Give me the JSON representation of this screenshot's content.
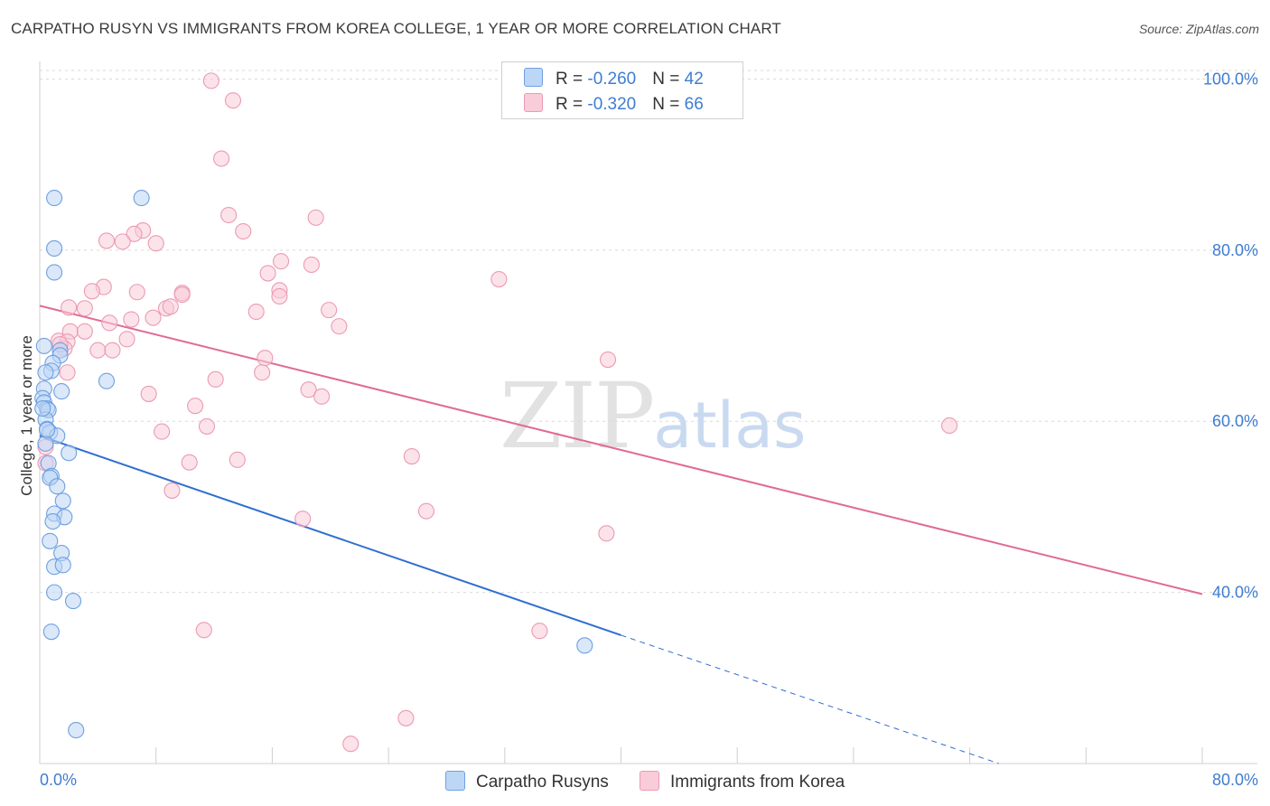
{
  "title": "CARPATHO RUSYN VS IMMIGRANTS FROM KOREA COLLEGE, 1 YEAR OR MORE CORRELATION CHART",
  "source": "Source: ZipAtlas.com",
  "watermark": {
    "zip": "ZIP",
    "atlas": "atlas"
  },
  "legend": {
    "rows": [
      {
        "r_label": "R = ",
        "r_value": "-0.260",
        "n_label": "N = ",
        "n_value": "42",
        "color": "#a9c8f2"
      },
      {
        "r_label": "R = ",
        "r_value": "-0.320",
        "n_label": "N = ",
        "n_value": "66",
        "color": "#f7b8cb"
      }
    ]
  },
  "bottom_legend": [
    {
      "label": "Carpatho Rusyns",
      "color": "#a9c8f2"
    },
    {
      "label": "Immigrants from Korea",
      "color": "#f7b8cb"
    }
  ],
  "chart_data": {
    "type": "scatter",
    "title": "CARPATHO RUSYN VS IMMIGRANTS FROM KOREA COLLEGE, 1 YEAR OR MORE CORRELATION CHART",
    "xlabel": "",
    "ylabel": "College, 1 year or more",
    "xlim": [
      0,
      80
    ],
    "ylim": [
      20,
      101
    ],
    "x_tick_labels": [
      "0.0%",
      "80.0%"
    ],
    "y_ticks": [
      40,
      60,
      80,
      100
    ],
    "y_tick_labels": [
      "40.0%",
      "60.0%",
      "80.0%",
      "100.0%"
    ],
    "grid": true,
    "series": [
      {
        "name": "Carpatho Rusyns",
        "stroke": "#6fa0e0",
        "fill": "#bcd6f5",
        "line_color": "#2f6fd0",
        "trend": {
          "x0": 0,
          "y0": 58.3,
          "x1": 40,
          "y1": 35.0,
          "x_dash_end": 66.0,
          "y_dash_end": 20.0
        },
        "points": [
          [
            1.0,
            86.1
          ],
          [
            1.0,
            80.2
          ],
          [
            1.0,
            77.4
          ],
          [
            0.3,
            68.8
          ],
          [
            1.4,
            68.3
          ],
          [
            1.4,
            67.7
          ],
          [
            0.9,
            66.8
          ],
          [
            0.8,
            65.9
          ],
          [
            0.4,
            65.7
          ],
          [
            0.3,
            63.8
          ],
          [
            1.5,
            63.5
          ],
          [
            0.2,
            62.7
          ],
          [
            0.3,
            62.2
          ],
          [
            0.5,
            61.5
          ],
          [
            0.6,
            61.3
          ],
          [
            0.4,
            60.2
          ],
          [
            0.5,
            59.1
          ],
          [
            0.7,
            58.7
          ],
          [
            1.2,
            58.3
          ],
          [
            0.4,
            57.4
          ],
          [
            2.0,
            56.3
          ],
          [
            0.6,
            55.1
          ],
          [
            0.8,
            53.6
          ],
          [
            0.7,
            53.4
          ],
          [
            1.2,
            52.4
          ],
          [
            1.6,
            50.7
          ],
          [
            1.0,
            49.2
          ],
          [
            1.7,
            48.8
          ],
          [
            0.9,
            48.3
          ],
          [
            0.7,
            46.0
          ],
          [
            1.5,
            44.6
          ],
          [
            1.0,
            43.0
          ],
          [
            1.6,
            43.2
          ],
          [
            1.0,
            40.0
          ],
          [
            2.3,
            39.0
          ],
          [
            0.8,
            35.4
          ],
          [
            4.6,
            64.7
          ],
          [
            7.0,
            86.1
          ],
          [
            37.5,
            33.8
          ],
          [
            2.5,
            23.9
          ],
          [
            0.2,
            61.5
          ],
          [
            0.5,
            59.0
          ]
        ]
      },
      {
        "name": "Immigrants from Korea",
        "stroke": "#eb9ab4",
        "fill": "#f9ccd9",
        "line_color": "#e06b95",
        "trend": {
          "x0": 0,
          "y0": 73.5,
          "x1": 80,
          "y1": 39.8
        },
        "points": [
          [
            11.8,
            99.8
          ],
          [
            13.3,
            97.5
          ],
          [
            12.5,
            90.7
          ],
          [
            13.0,
            84.1
          ],
          [
            19.0,
            83.8
          ],
          [
            14.0,
            82.2
          ],
          [
            7.1,
            82.3
          ],
          [
            6.5,
            81.9
          ],
          [
            5.7,
            81.0
          ],
          [
            4.6,
            81.1
          ],
          [
            8.0,
            80.8
          ],
          [
            16.6,
            78.7
          ],
          [
            18.7,
            78.3
          ],
          [
            15.7,
            77.3
          ],
          [
            31.6,
            76.6
          ],
          [
            4.4,
            75.7
          ],
          [
            3.6,
            75.2
          ],
          [
            6.7,
            75.1
          ],
          [
            9.8,
            75.0
          ],
          [
            16.5,
            75.3
          ],
          [
            9.8,
            74.8
          ],
          [
            16.5,
            74.6
          ],
          [
            2.0,
            73.3
          ],
          [
            3.1,
            73.2
          ],
          [
            8.7,
            73.2
          ],
          [
            9.0,
            73.4
          ],
          [
            19.9,
            73.0
          ],
          [
            14.9,
            72.8
          ],
          [
            7.8,
            72.1
          ],
          [
            6.3,
            71.9
          ],
          [
            4.8,
            71.5
          ],
          [
            20.6,
            71.1
          ],
          [
            2.1,
            70.5
          ],
          [
            3.1,
            70.5
          ],
          [
            6.0,
            69.6
          ],
          [
            1.3,
            69.4
          ],
          [
            1.9,
            69.3
          ],
          [
            1.7,
            68.5
          ],
          [
            4.0,
            68.3
          ],
          [
            5.0,
            68.3
          ],
          [
            15.5,
            67.4
          ],
          [
            39.1,
            67.2
          ],
          [
            15.3,
            65.7
          ],
          [
            1.9,
            65.7
          ],
          [
            12.1,
            64.9
          ],
          [
            18.5,
            63.7
          ],
          [
            7.5,
            63.2
          ],
          [
            19.4,
            62.9
          ],
          [
            10.7,
            61.8
          ],
          [
            11.5,
            59.4
          ],
          [
            62.6,
            59.5
          ],
          [
            8.4,
            58.8
          ],
          [
            25.6,
            55.9
          ],
          [
            13.6,
            55.5
          ],
          [
            10.3,
            55.2
          ],
          [
            0.4,
            55.1
          ],
          [
            9.1,
            51.9
          ],
          [
            26.6,
            49.5
          ],
          [
            18.1,
            48.6
          ],
          [
            39.0,
            46.9
          ],
          [
            11.3,
            35.6
          ],
          [
            34.4,
            35.5
          ],
          [
            25.2,
            25.3
          ],
          [
            21.4,
            22.3
          ],
          [
            0.4,
            57.0
          ],
          [
            1.4,
            69.0
          ]
        ]
      }
    ]
  }
}
